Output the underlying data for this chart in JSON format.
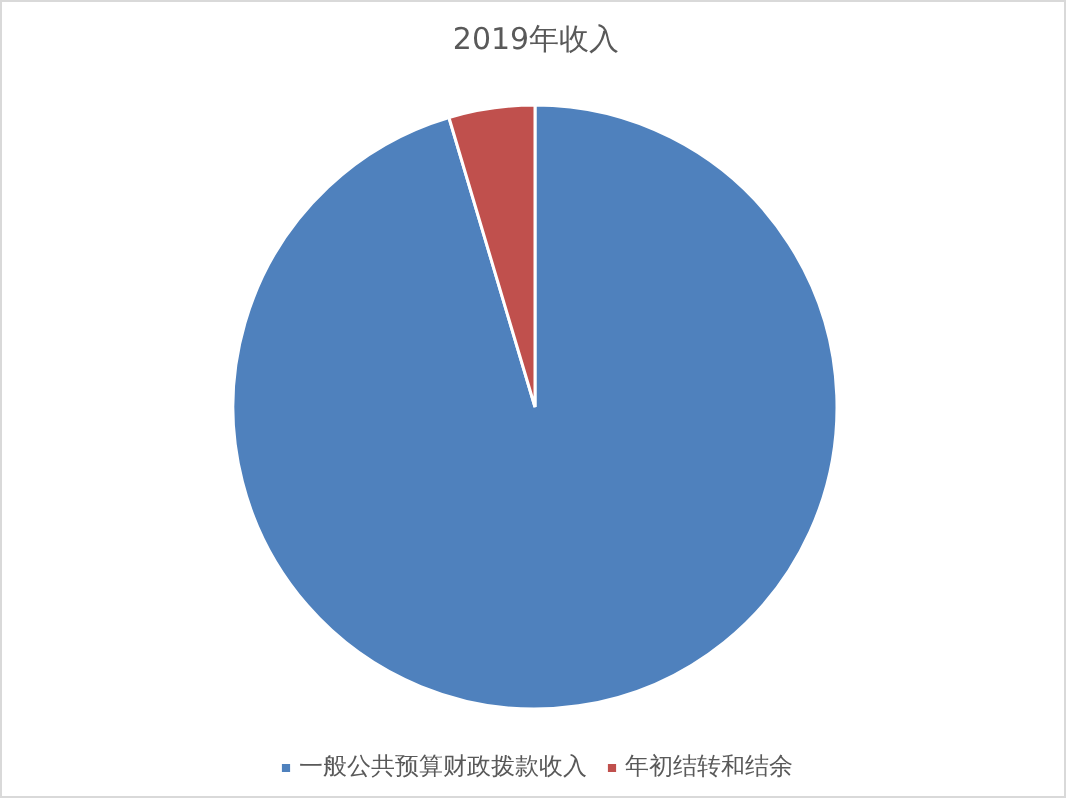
{
  "chart_data": {
    "type": "pie",
    "title": "2019年收入",
    "categories": [
      "一般公共预算财政拨款收入",
      "年初结转和结余"
    ],
    "values": [
      95.4,
      4.6
    ],
    "colors": [
      "#4f81bd",
      "#c0504d"
    ],
    "legend": "bottom"
  }
}
